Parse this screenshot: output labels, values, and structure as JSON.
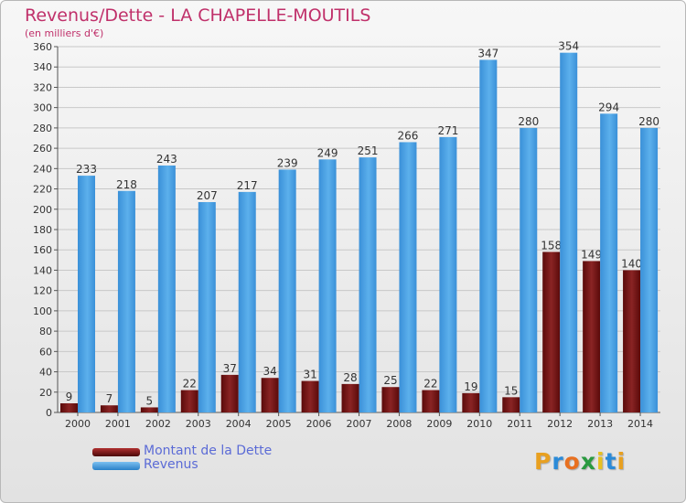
{
  "chart_data": {
    "type": "bar",
    "title": "Revenus/Dette - LA CHAPELLE-MOUTILS",
    "subtitle": "(en milliers d'€)",
    "categories": [
      "2000",
      "2001",
      "2002",
      "2003",
      "2004",
      "2005",
      "2006",
      "2007",
      "2008",
      "2009",
      "2010",
      "2011",
      "2012",
      "2013",
      "2014"
    ],
    "series": [
      {
        "name": "Montant de la Dette",
        "color": "#7a1a1a",
        "values": [
          9,
          7,
          5,
          22,
          37,
          34,
          31,
          28,
          25,
          22,
          19,
          15,
          158,
          149,
          140
        ]
      },
      {
        "name": "Revenus",
        "color": "#4a9fe0",
        "values": [
          233,
          218,
          243,
          207,
          217,
          239,
          249,
          251,
          266,
          271,
          347,
          280,
          354,
          294,
          280
        ]
      }
    ],
    "ylim": [
      0,
      360
    ],
    "yticks": [
      0,
      20,
      40,
      60,
      80,
      100,
      120,
      140,
      160,
      180,
      200,
      220,
      240,
      260,
      280,
      300,
      320,
      340,
      360
    ],
    "grid": true,
    "legend_position": "bottom-left"
  },
  "logo": {
    "letters": [
      "P",
      "r",
      "o",
      "x",
      "i",
      "t",
      "i"
    ],
    "colors": [
      "#e8a020",
      "#2a8ad8",
      "#e87020",
      "#2a9a40",
      "#e8c020",
      "#2a8ad8",
      "#e8a020"
    ]
  }
}
